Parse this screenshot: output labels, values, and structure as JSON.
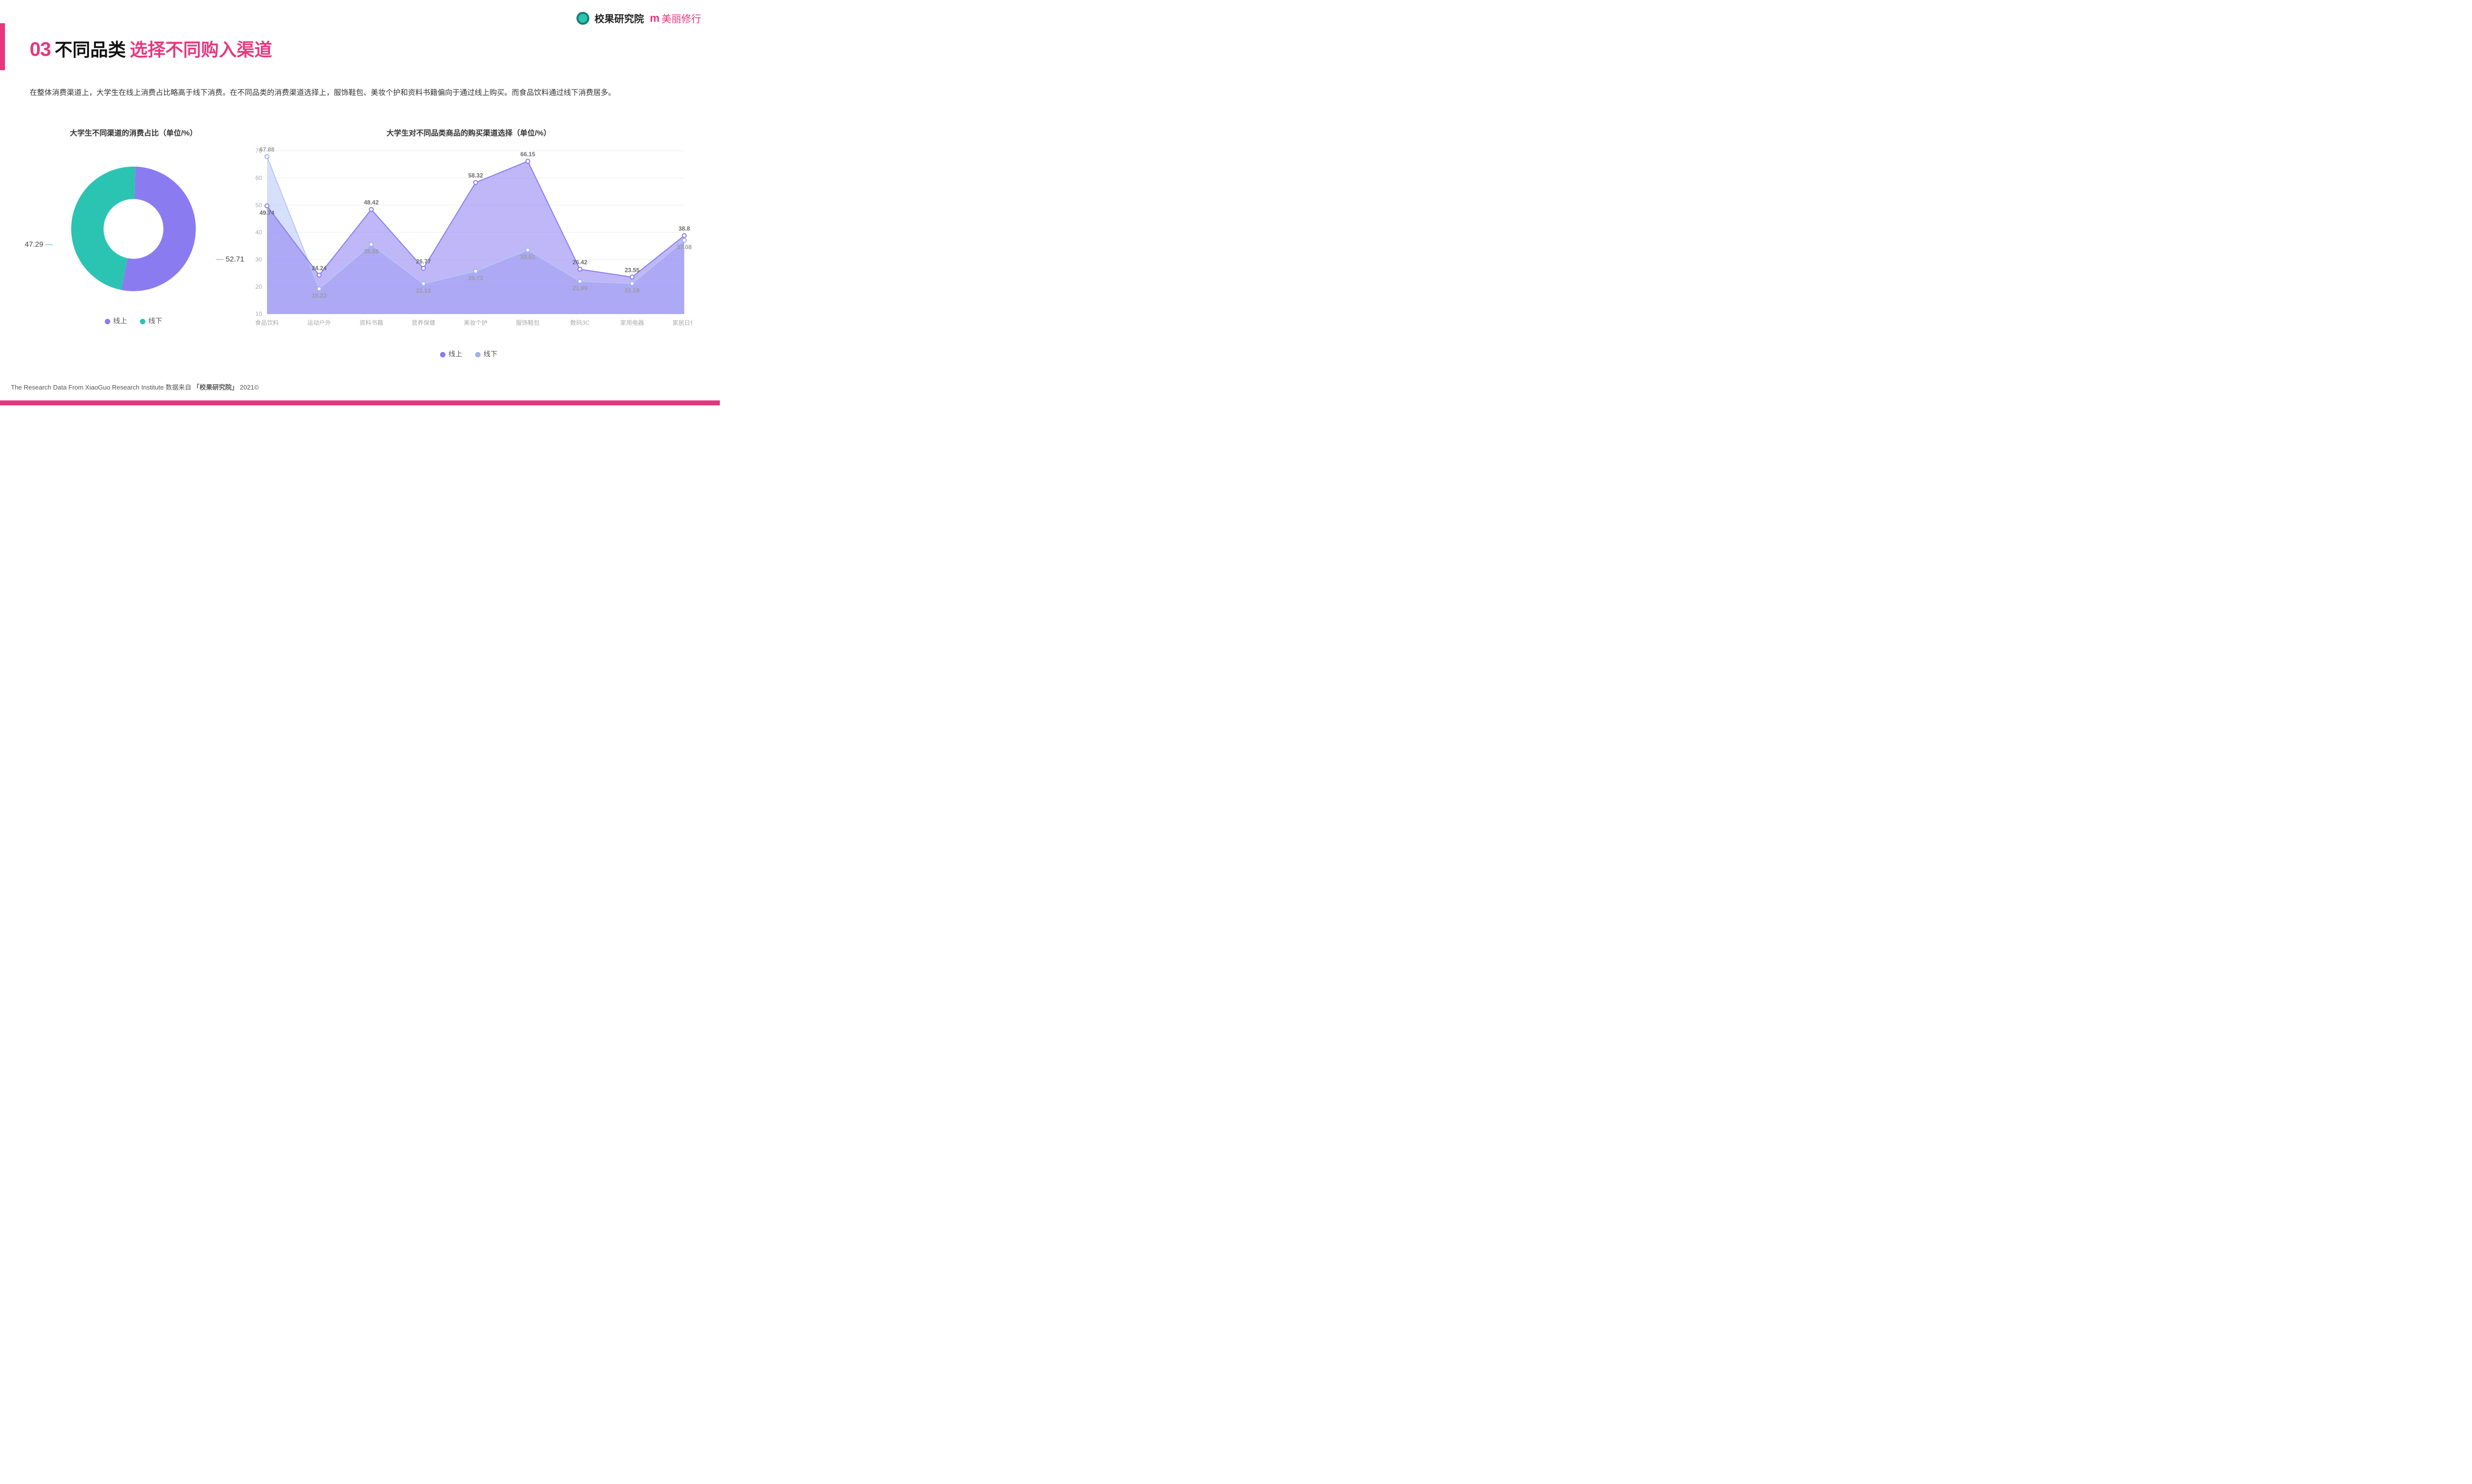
{
  "header": {
    "logo_inst": "校果研究院",
    "logo_brand": "美丽修行"
  },
  "title": {
    "num": "03",
    "black": "不同品类",
    "pink": "选择不同购入渠道"
  },
  "description": "在整体消费渠道上，大学生在线上消费占比略高于线下消费。在不同品类的消费渠道选择上，服饰鞋包、美妆个护和资料书籍偏向于通过线上购买。而食品饮料通过线下消费居多。",
  "donut": {
    "title": "大学生不同渠道的消费占比（单位/%）",
    "type": "donut",
    "slices": [
      {
        "label": "线上",
        "value": 52.71,
        "color": "#8a7cf0"
      },
      {
        "label": "线下",
        "value": 47.29,
        "color": "#2bc4b3"
      }
    ],
    "inner_ratio": 0.48,
    "background_color": "#ffffff",
    "label_fontsize": 15,
    "value_left": "47.29",
    "value_right": "52.71",
    "leader_color": "#2bc4b3",
    "leader_color_right": "#8a7cf0"
  },
  "line": {
    "title": "大学生对不同品类商品的购买渠道选择（单位/%）",
    "type": "area-line",
    "categories": [
      "食品饮料",
      "运动户外",
      "资料书籍",
      "营养保健",
      "美妆个护",
      "服饰鞋包",
      "数码3C",
      "家用电器",
      "家居日化"
    ],
    "series": [
      {
        "name": "线上",
        "color": "#8a7cf0",
        "fill": "#8a7cf0",
        "fill_opacity": 0.55,
        "marker_fill": "#ffffff",
        "marker_stroke": "#8a7cf0",
        "values": [
          49.74,
          24.24,
          48.42,
          26.77,
          58.32,
          66.15,
          26.42,
          23.55,
          38.8
        ]
      },
      {
        "name": "线下",
        "color": "#b7c6f7",
        "fill": "#b7c6f7",
        "fill_opacity": 0.55,
        "marker_fill": "#ffffff",
        "marker_stroke": "#9fb3f2",
        "values": [
          67.88,
          19.23,
          35.58,
          21.13,
          25.73,
          33.51,
          21.99,
          21.19,
          37.08
        ]
      }
    ],
    "ylim": [
      10,
      70
    ],
    "ytick_step": 10,
    "grid_color": "#eeeeee",
    "axis_color": "#cccccc",
    "label_fontsize": 12,
    "marker_radius": 4,
    "line_width": 2
  },
  "legend": {
    "online": "线上",
    "offline": "线下",
    "online_color": "#8a7cf0",
    "offline_color": "#2bc4b3",
    "offline_color_line": "#9fb3f2"
  },
  "footer": {
    "prefix": "The Research Data From XiaoGuo Research Institute 数据来自",
    "bold": "「校果研究院」",
    "suffix": "2021©"
  }
}
